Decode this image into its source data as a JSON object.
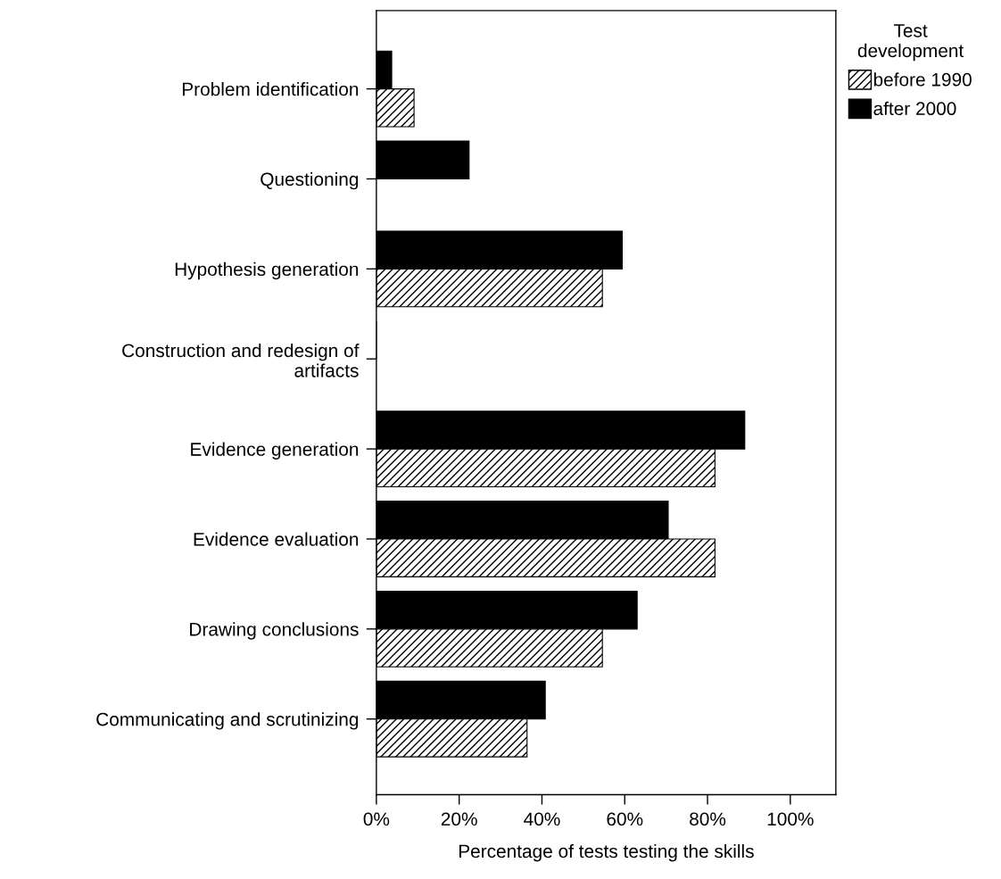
{
  "chart_data": {
    "type": "bar",
    "orientation": "horizontal",
    "xlabel": "Percentage of tests testing the skills",
    "legend_title": "Test\ndevelopment",
    "categories": [
      "Problem identification",
      "Questioning",
      "Hypothesis generation",
      "Construction and redesign of\nartifacts",
      "Evidence generation",
      "Evidence evaluation",
      "Drawing conclusions",
      "Communicating and scrutinizing"
    ],
    "series": [
      {
        "name": "after 2000",
        "color": "#000000",
        "values": [
          3.7,
          22.4,
          59.4,
          0,
          89.0,
          70.5,
          63.0,
          40.8
        ]
      },
      {
        "name": "before 1990",
        "color": "#ffffff",
        "values": [
          9.1,
          0,
          54.6,
          0,
          81.8,
          81.8,
          54.6,
          36.4
        ]
      }
    ],
    "xlim": [
      0,
      111
    ],
    "xticks": [
      {
        "value": 0,
        "label": "0%"
      },
      {
        "value": 20,
        "label": "20%"
      },
      {
        "value": 40,
        "label": "40%"
      },
      {
        "value": 60,
        "label": "60%"
      },
      {
        "value": 80,
        "label": "80%"
      },
      {
        "value": 100,
        "label": "100%"
      }
    ],
    "grid": false,
    "legend": "top right"
  }
}
